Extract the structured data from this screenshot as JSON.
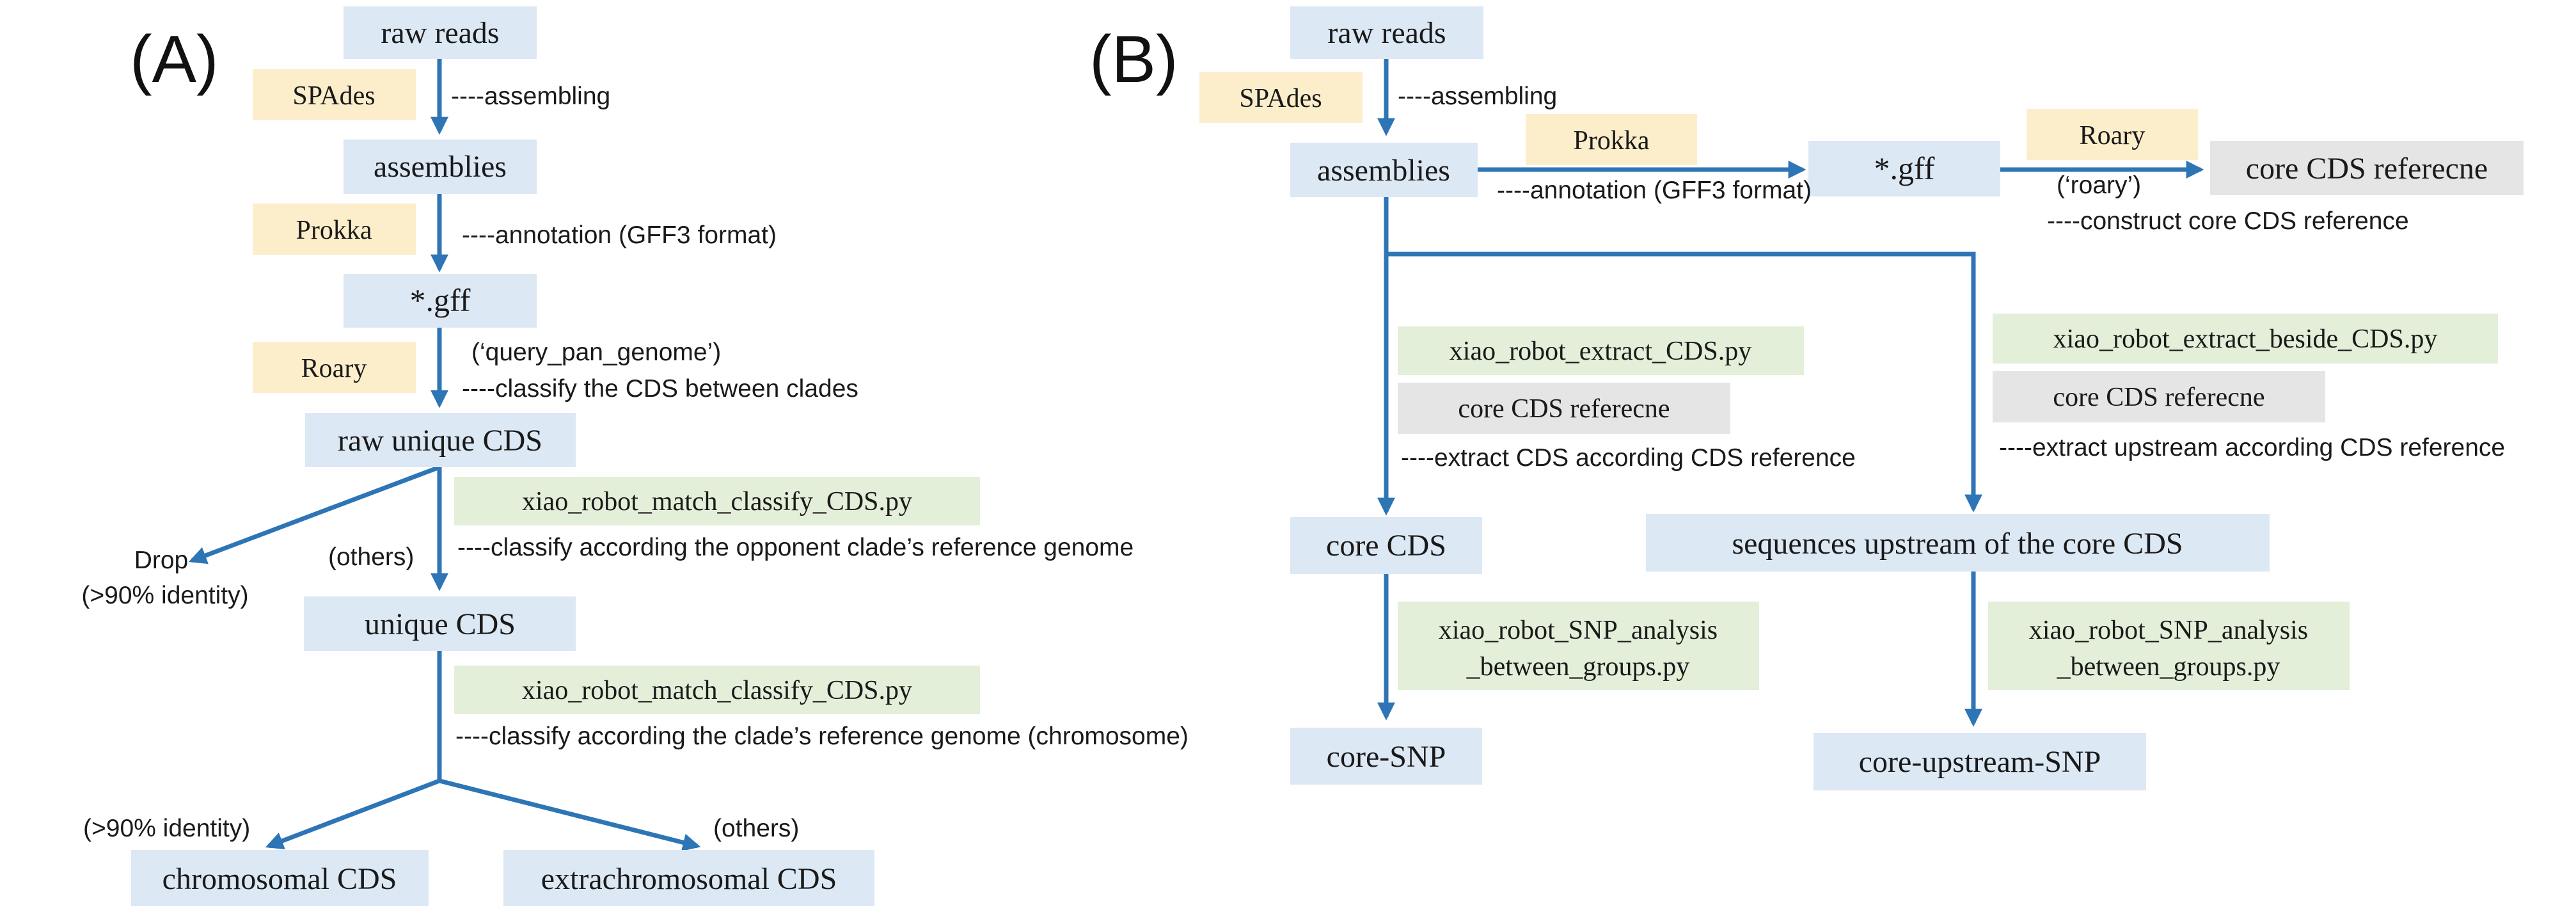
{
  "colors": {
    "arrow": "#2e75b6",
    "node_blue": "#dde8f5",
    "tool_yellow": "#fdeecb",
    "script_green": "#e3efd9",
    "reference_gray": "#e5e5e5"
  },
  "panel_a": {
    "label": "(A)",
    "nodes": {
      "raw_reads": "raw reads",
      "assemblies": "assemblies",
      "gff": "*.gff",
      "raw_unique_cds": "raw unique CDS",
      "unique_cds": "unique CDS",
      "chromosomal_cds": "chromosomal  CDS",
      "extrachromosomal_cds": "extrachromosomal  CDS"
    },
    "tools": {
      "spades": "SPAdes",
      "prokka": "Prokka",
      "roary": "Roary",
      "script_match_1": "xiao_robot_match_classify_CDS.py",
      "script_match_2": "xiao_robot_match_classify_CDS.py"
    },
    "notes": {
      "assembling": "----assembling",
      "annotation": "----annotation (GFF3 format)",
      "query_pan_genome": "(‘query_pan_genome’)",
      "classify_between_clades": "----classify the CDS between clades",
      "classify_opponent": "----classify according the opponent clade’s reference genome",
      "classify_chromosome": "----classify according the clade’s reference genome (chromosome)",
      "drop": "Drop",
      "drop_identity": "(>90% identity)",
      "others_1": "(others)",
      "identity_90": "(>90% identity)",
      "others_2": "(others)"
    }
  },
  "panel_b": {
    "label": "(B)",
    "nodes": {
      "raw_reads": "raw reads",
      "assemblies": "assemblies",
      "gff": "*.gff",
      "core_cds_reference": "core CDS referecne",
      "core_cds": "core CDS",
      "upstream": "sequences  upstream of the core CDS",
      "core_snp": "core-SNP",
      "core_upstream_snp": "core-upstream-SNP"
    },
    "tools": {
      "spades": "SPAdes",
      "prokka": "Prokka",
      "roary": "Roary",
      "script_extract_cds": "xiao_robot_extract_CDS.py",
      "ref_left": "core CDS referecne",
      "script_extract_beside": "xiao_robot_extract_beside_CDS.py",
      "ref_right": "core CDS referecne",
      "snp_left_line1": "xiao_robot_SNP_analysis",
      "snp_left_line2": "_between_groups.py",
      "snp_right_line1": "xiao_robot_SNP_analysis",
      "snp_right_line2": "_between_groups.py"
    },
    "notes": {
      "assembling": "----assembling",
      "annotation": "----annotation (GFF3 format)",
      "roary_quote": "(‘roary’)",
      "construct_reference": "----construct core CDS reference",
      "extract_cds": "----extract CDS according CDS reference",
      "extract_upstream": "----extract upstream according CDS reference"
    }
  }
}
